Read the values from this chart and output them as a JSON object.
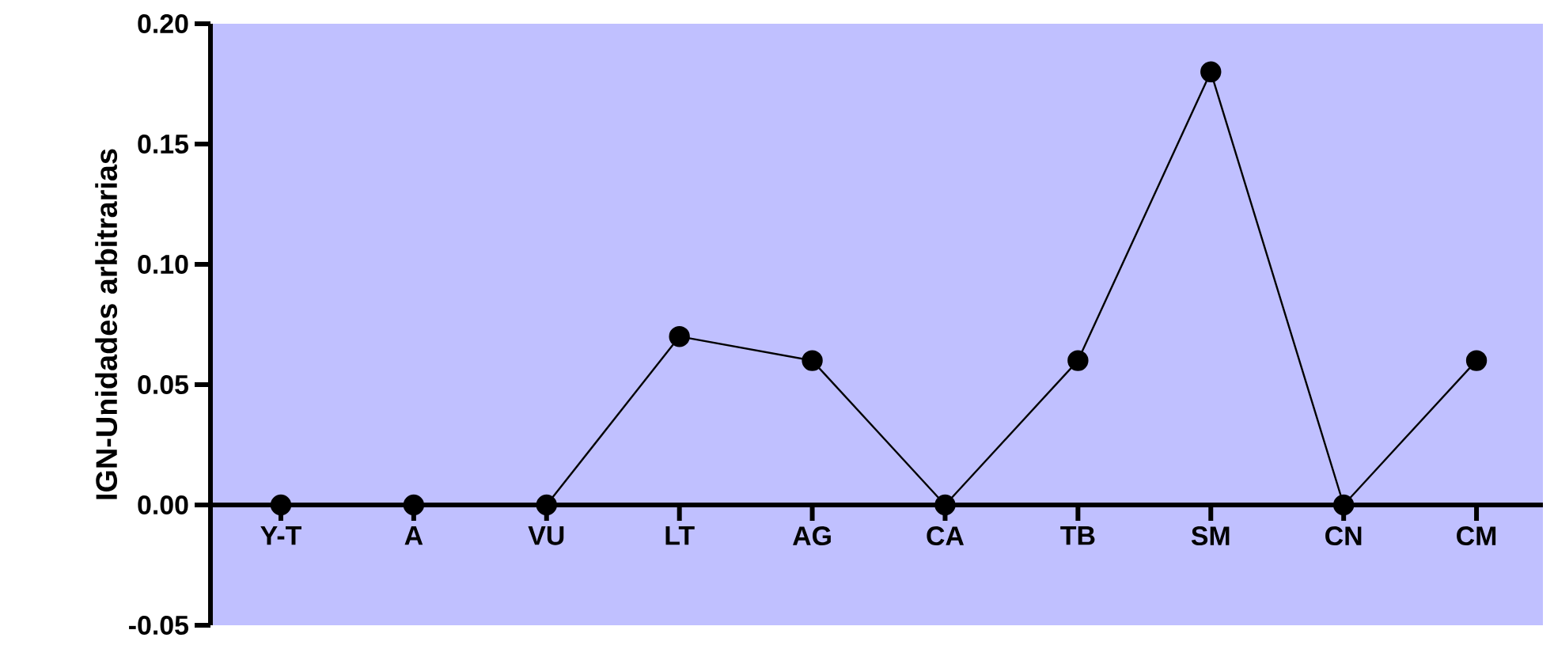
{
  "chart_data": {
    "type": "line",
    "ylabel": "IGN-Unidades arbitrarias",
    "categories": [
      "Y-T",
      "A",
      "VU",
      "LT",
      "AG",
      "CA",
      "TB",
      "SM",
      "CN",
      "CM"
    ],
    "series": [
      {
        "color": "#000000",
        "values": [
          0,
          0,
          0,
          0.07,
          0.06,
          0,
          0.06,
          0.18,
          0,
          0.06
        ]
      }
    ],
    "ylim": [
      -0.05,
      0.2
    ],
    "yticks": [
      {
        "value": -0.05,
        "label": "-0.05"
      },
      {
        "value": 0,
        "label": "0.00"
      },
      {
        "value": 0.05,
        "label": "0.05"
      },
      {
        "value": 0.1,
        "label": "0.10"
      },
      {
        "value": 0.15,
        "label": "0.15"
      },
      {
        "value": 0.2,
        "label": "0.20"
      }
    ],
    "grid": false,
    "marker": "circle",
    "line_style": "solid"
  }
}
